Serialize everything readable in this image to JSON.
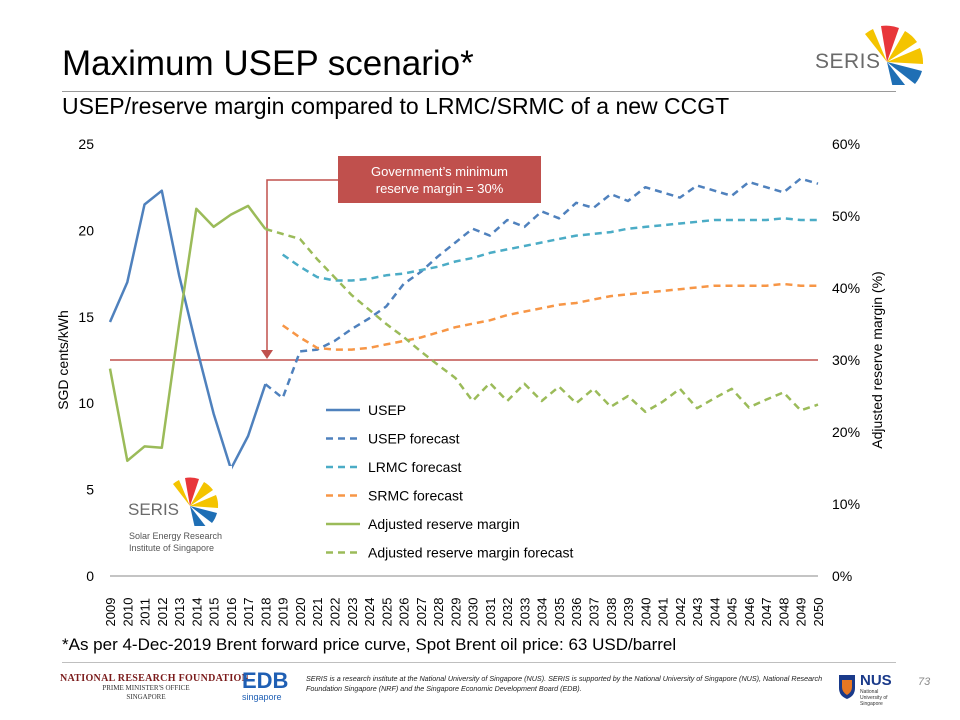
{
  "slide": {
    "title": "Maximum USEP scenario*",
    "subtitle": "USEP/reserve margin compared to LRMC/SRMC of a new CCGT",
    "footnote": "*As per 4-Dec-2019 Brent forward price curve, Spot Brent oil price: 63 USD/barrel",
    "page_number": "73"
  },
  "callout": {
    "line1": "Government’s minimum",
    "line2": "reserve margin = 30%"
  },
  "logos": {
    "seris": "SERIS",
    "seris_full": "Solar Energy Research Institute of Singapore",
    "nrf_title": "National Research Foundation",
    "nrf_sub1": "Prime Minister's Office",
    "nrf_sub2": "Singapore",
    "edb": "EDB",
    "edb_sub": "singapore",
    "nus": "NUS",
    "nus_sub": "National University of Singapore"
  },
  "disclaimer": "SERIS is a research institute at the National University of Singapore (NUS). SERIS is supported by the National University of Singapore (NUS), National Research Foundation Singapore (NRF) and the Singapore Economic Development Board (EDB).",
  "colors": {
    "usep": "#4f81bd",
    "lrmc": "#4bacc6",
    "srmc": "#f79646",
    "reserve": "#9bbb59",
    "minline": "#c0504d"
  },
  "chart_data": {
    "type": "line",
    "ylabel": "SGD cents/kWh",
    "y2label": "Adjusted reserve margin (%)",
    "ylim": [
      0,
      25
    ],
    "y2lim": [
      0,
      0.6
    ],
    "yticks": [
      "0",
      "5",
      "10",
      "15",
      "20",
      "25"
    ],
    "y2ticks": [
      "0%",
      "10%",
      "20%",
      "30%",
      "40%",
      "50%",
      "60%"
    ],
    "x": [
      2009,
      2010,
      2011,
      2012,
      2013,
      2014,
      2015,
      2016,
      2017,
      2018,
      2019,
      2020,
      2021,
      2022,
      2023,
      2024,
      2025,
      2026,
      2027,
      2028,
      2029,
      2030,
      2031,
      2032,
      2033,
      2034,
      2035,
      2036,
      2037,
      2038,
      2039,
      2040,
      2041,
      2042,
      2043,
      2044,
      2045,
      2046,
      2047,
      2048,
      2049,
      2050
    ],
    "legend_position": "center",
    "reference_line": {
      "axis": "y2",
      "value": 0.3
    },
    "series": [
      {
        "name": "USEP",
        "axis": "y",
        "style": "solid",
        "color": "#4f81bd",
        "x": [
          2009,
          2010,
          2011,
          2012,
          2013,
          2014,
          2015,
          2016,
          2017,
          2018
        ],
        "values": [
          14.7,
          17.0,
          21.5,
          22.3,
          17.4,
          13.3,
          9.4,
          6.2,
          8.1,
          11.1
        ]
      },
      {
        "name": "USEP forecast",
        "axis": "y",
        "style": "dashed",
        "color": "#4f81bd",
        "x": [
          2018,
          2019,
          2020,
          2021,
          2022,
          2023,
          2024,
          2025,
          2026,
          2027,
          2028,
          2029,
          2030,
          2031,
          2032,
          2033,
          2034,
          2035,
          2036,
          2037,
          2038,
          2039,
          2040,
          2041,
          2042,
          2043,
          2044,
          2045,
          2046,
          2047,
          2048,
          2049,
          2050
        ],
        "values": [
          11.1,
          10.3,
          13.0,
          13.1,
          13.6,
          14.3,
          14.9,
          15.6,
          16.9,
          17.6,
          18.5,
          19.3,
          20.1,
          19.7,
          20.6,
          20.2,
          21.1,
          20.7,
          21.6,
          21.3,
          22.1,
          21.7,
          22.5,
          22.2,
          21.9,
          22.6,
          22.3,
          22.0,
          22.8,
          22.5,
          22.2,
          23.0,
          22.7
        ]
      },
      {
        "name": "LRMC forecast",
        "axis": "y",
        "style": "dashed",
        "color": "#4bacc6",
        "x": [
          2019,
          2020,
          2021,
          2022,
          2023,
          2024,
          2025,
          2026,
          2027,
          2028,
          2029,
          2030,
          2031,
          2032,
          2033,
          2034,
          2035,
          2036,
          2037,
          2038,
          2039,
          2040,
          2041,
          2042,
          2043,
          2044,
          2045,
          2046,
          2047,
          2048,
          2049,
          2050
        ],
        "values": [
          18.6,
          17.9,
          17.3,
          17.1,
          17.1,
          17.2,
          17.4,
          17.5,
          17.7,
          17.9,
          18.2,
          18.4,
          18.7,
          18.9,
          19.1,
          19.3,
          19.5,
          19.7,
          19.8,
          19.9,
          20.1,
          20.2,
          20.3,
          20.4,
          20.5,
          20.6,
          20.6,
          20.6,
          20.6,
          20.7,
          20.6,
          20.6
        ]
      },
      {
        "name": "SRMC forecast",
        "axis": "y",
        "style": "dashed",
        "color": "#f79646",
        "x": [
          2019,
          2020,
          2021,
          2022,
          2023,
          2024,
          2025,
          2026,
          2027,
          2028,
          2029,
          2030,
          2031,
          2032,
          2033,
          2034,
          2035,
          2036,
          2037,
          2038,
          2039,
          2040,
          2041,
          2042,
          2043,
          2044,
          2045,
          2046,
          2047,
          2048,
          2049,
          2050
        ],
        "values": [
          14.5,
          13.8,
          13.2,
          13.1,
          13.1,
          13.2,
          13.4,
          13.6,
          13.8,
          14.1,
          14.4,
          14.6,
          14.8,
          15.1,
          15.3,
          15.5,
          15.7,
          15.8,
          16.0,
          16.2,
          16.3,
          16.4,
          16.5,
          16.6,
          16.7,
          16.8,
          16.8,
          16.8,
          16.8,
          16.9,
          16.8,
          16.8
        ]
      },
      {
        "name": "Adjusted reserve margin",
        "axis": "y2",
        "style": "solid",
        "color": "#9bbb59",
        "x": [
          2009,
          2010,
          2011,
          2012,
          2013,
          2014,
          2015,
          2016,
          2017,
          2018
        ],
        "values": [
          0.288,
          0.16,
          0.18,
          0.178,
          0.35,
          0.51,
          0.485,
          0.502,
          0.514,
          0.482
        ]
      },
      {
        "name": "Adjusted reserve margin forecast",
        "axis": "y2",
        "style": "dashed",
        "color": "#9bbb59",
        "x": [
          2018,
          2019,
          2020,
          2021,
          2022,
          2023,
          2024,
          2025,
          2026,
          2027,
          2028,
          2029,
          2030,
          2031,
          2032,
          2033,
          2034,
          2035,
          2036,
          2037,
          2038,
          2039,
          2040,
          2041,
          2042,
          2043,
          2044,
          2045,
          2046,
          2047,
          2048,
          2049,
          2050
        ],
        "values": [
          0.482,
          0.475,
          0.468,
          0.44,
          0.415,
          0.39,
          0.37,
          0.35,
          0.332,
          0.312,
          0.293,
          0.275,
          0.243,
          0.268,
          0.243,
          0.267,
          0.243,
          0.263,
          0.24,
          0.26,
          0.235,
          0.25,
          0.228,
          0.242,
          0.26,
          0.233,
          0.247,
          0.26,
          0.234,
          0.245,
          0.255,
          0.23,
          0.238
        ]
      }
    ]
  }
}
